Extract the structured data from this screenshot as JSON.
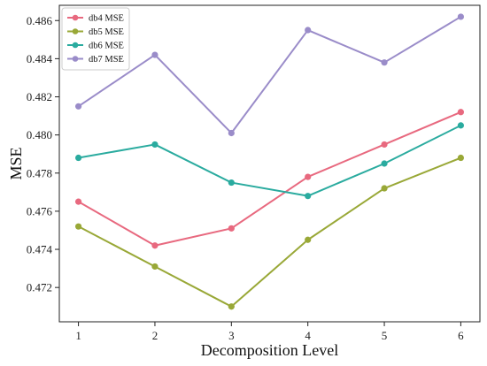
{
  "chart_data": {
    "type": "line",
    "xlabel": "Decomposition Level",
    "ylabel": "MSE",
    "x": [
      1,
      2,
      3,
      4,
      5,
      6
    ],
    "x_ticks": [
      "1",
      "2",
      "3",
      "4",
      "5",
      "6"
    ],
    "xlim": [
      0.75,
      6.25
    ],
    "ylim": [
      0.4702,
      0.4868
    ],
    "y_ticks": [
      "0.472",
      "0.474",
      "0.476",
      "0.478",
      "0.480",
      "0.482",
      "0.484",
      "0.486"
    ],
    "grid": false,
    "legend_position": "top-left",
    "series": [
      {
        "name": "db4 MSE",
        "color": "#e8697f",
        "values": [
          0.4765,
          0.4742,
          0.4751,
          0.4778,
          0.4795,
          0.4812
        ]
      },
      {
        "name": "db5 MSE",
        "color": "#99a837",
        "values": [
          0.4752,
          0.4731,
          0.471,
          0.4745,
          0.4772,
          0.4788
        ]
      },
      {
        "name": "db6 MSE",
        "color": "#2aab9f",
        "values": [
          0.4788,
          0.4795,
          0.4775,
          0.4768,
          0.4785,
          0.4805
        ]
      },
      {
        "name": "db7 MSE",
        "color": "#9a8cc9",
        "values": [
          0.4815,
          0.4842,
          0.4801,
          0.4855,
          0.4838,
          0.4862
        ]
      }
    ]
  }
}
